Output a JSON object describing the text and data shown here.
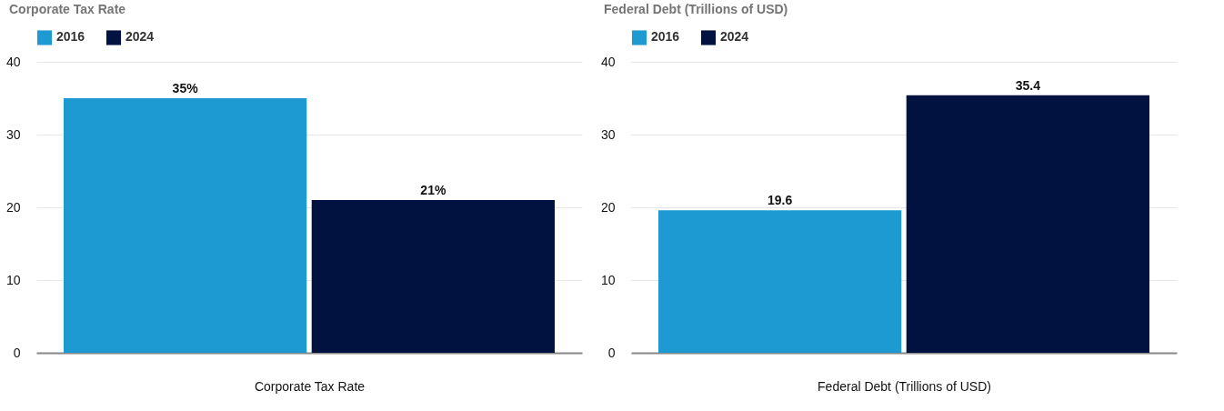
{
  "chart_data": [
    {
      "type": "bar",
      "title": "Corporate Tax Rate",
      "xlabel": "Corporate Tax Rate",
      "categories": [
        null
      ],
      "series": [
        {
          "name": "2016",
          "color": "#1e9ad3",
          "values": [
            35
          ],
          "value_labels": [
            "35%"
          ]
        },
        {
          "name": "2024",
          "color": "#011240",
          "values": [
            21
          ],
          "value_labels": [
            "21%"
          ]
        }
      ],
      "ylim": [
        0,
        40
      ],
      "yticks": [
        0,
        10,
        20,
        30,
        40
      ],
      "grid": "y",
      "legend": "top left"
    },
    {
      "type": "bar",
      "title": "Federal Debt (Trillions of USD)",
      "xlabel": "Federal Debt (Trillions of USD)",
      "categories": [
        null
      ],
      "series": [
        {
          "name": "2016",
          "color": "#1e9ad3",
          "values": [
            19.6
          ]
        },
        {
          "name": "2024",
          "color": "#011240",
          "values": [
            35.4
          ]
        }
      ],
      "ylim": [
        0,
        40
      ],
      "yticks": [
        0,
        10,
        20,
        30,
        40
      ],
      "grid": "y",
      "legend": "top left",
      "data_labels": true
    }
  ]
}
